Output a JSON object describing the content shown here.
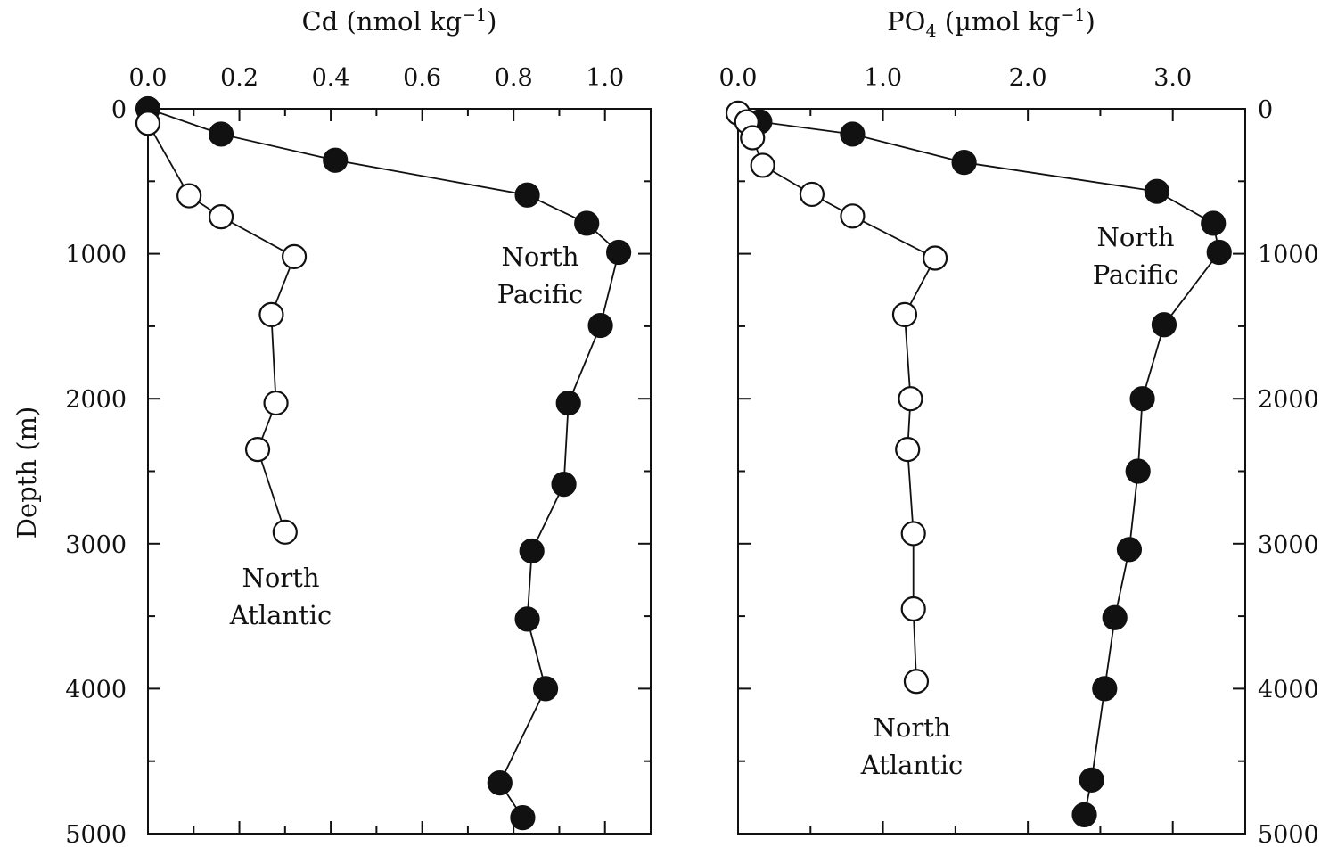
{
  "chart_data": [
    {
      "type": "scatter",
      "title": "Cd (nmol kg⁻¹)",
      "xlabel": "Cd (nmol kg⁻¹)",
      "ylabel": "Depth (m)",
      "xlim": [
        0,
        1.1
      ],
      "ylim": [
        5000,
        0
      ],
      "x_ticks": [
        "0.0",
        "0.2",
        "0.4",
        "0.6",
        "0.8",
        "1.0"
      ],
      "y_ticks": [
        "0",
        "1000",
        "2000",
        "3000",
        "4000",
        "5000"
      ],
      "series": [
        {
          "label": "North Pacific",
          "marker": "filled-circle",
          "points": [
            {
              "x": 0.0,
              "y": 0
            },
            {
              "x": 0.16,
              "y": 175
            },
            {
              "x": 0.41,
              "y": 355
            },
            {
              "x": 0.83,
              "y": 595
            },
            {
              "x": 0.96,
              "y": 790
            },
            {
              "x": 1.03,
              "y": 990
            },
            {
              "x": 0.99,
              "y": 1495
            },
            {
              "x": 0.92,
              "y": 2030
            },
            {
              "x": 0.91,
              "y": 2590
            },
            {
              "x": 0.84,
              "y": 3050
            },
            {
              "x": 0.83,
              "y": 3520
            },
            {
              "x": 0.87,
              "y": 4000
            },
            {
              "x": 0.77,
              "y": 4650
            },
            {
              "x": 0.82,
              "y": 4890
            }
          ]
        },
        {
          "label": "North Atlantic",
          "marker": "open-circle",
          "points": [
            {
              "x": 0.0,
              "y": 100
            },
            {
              "x": 0.09,
              "y": 600
            },
            {
              "x": 0.16,
              "y": 745
            },
            {
              "x": 0.32,
              "y": 1020
            },
            {
              "x": 0.27,
              "y": 1420
            },
            {
              "x": 0.28,
              "y": 2030
            },
            {
              "x": 0.24,
              "y": 2350
            },
            {
              "x": 0.3,
              "y": 2920
            }
          ]
        }
      ],
      "annotations": [
        {
          "lines": [
            "North",
            "Pacific"
          ]
        },
        {
          "lines": [
            "North",
            "Atlantic"
          ]
        }
      ]
    },
    {
      "type": "scatter",
      "title": "PO₄ (µmol kg⁻¹)",
      "xlabel": "PO₄ (µmol kg⁻¹)",
      "ylabel": "Depth (m)",
      "xlim": [
        0,
        3.5
      ],
      "ylim": [
        5000,
        0
      ],
      "x_ticks": [
        "0.0",
        "1.0",
        "2.0",
        "3.0"
      ],
      "y_ticks": [
        "0",
        "1000",
        "2000",
        "3000",
        "4000",
        "5000"
      ],
      "series": [
        {
          "label": "North Pacific",
          "marker": "filled-circle",
          "points": [
            {
              "x": 0.15,
              "y": 90
            },
            {
              "x": 0.79,
              "y": 175
            },
            {
              "x": 1.56,
              "y": 370
            },
            {
              "x": 2.89,
              "y": 570
            },
            {
              "x": 3.28,
              "y": 790
            },
            {
              "x": 3.32,
              "y": 990
            },
            {
              "x": 2.94,
              "y": 1490
            },
            {
              "x": 2.79,
              "y": 2000
            },
            {
              "x": 2.76,
              "y": 2500
            },
            {
              "x": 2.7,
              "y": 3040
            },
            {
              "x": 2.6,
              "y": 3510
            },
            {
              "x": 2.53,
              "y": 4000
            },
            {
              "x": 2.44,
              "y": 4630
            },
            {
              "x": 2.39,
              "y": 4870
            }
          ]
        },
        {
          "label": "North Atlantic",
          "marker": "open-circle",
          "points": [
            {
              "x": 0.0,
              "y": 30
            },
            {
              "x": 0.06,
              "y": 90
            },
            {
              "x": 0.1,
              "y": 200
            },
            {
              "x": 0.17,
              "y": 390
            },
            {
              "x": 0.51,
              "y": 590
            },
            {
              "x": 0.79,
              "y": 740
            },
            {
              "x": 1.36,
              "y": 1030
            },
            {
              "x": 1.15,
              "y": 1420
            },
            {
              "x": 1.19,
              "y": 2000
            },
            {
              "x": 1.17,
              "y": 2350
            },
            {
              "x": 1.21,
              "y": 2930
            },
            {
              "x": 1.21,
              "y": 3450
            },
            {
              "x": 1.23,
              "y": 3950
            }
          ]
        }
      ],
      "annotations": [
        {
          "lines": [
            "North",
            "Pacific"
          ]
        },
        {
          "lines": [
            "North",
            "Atlantic"
          ]
        }
      ]
    }
  ]
}
